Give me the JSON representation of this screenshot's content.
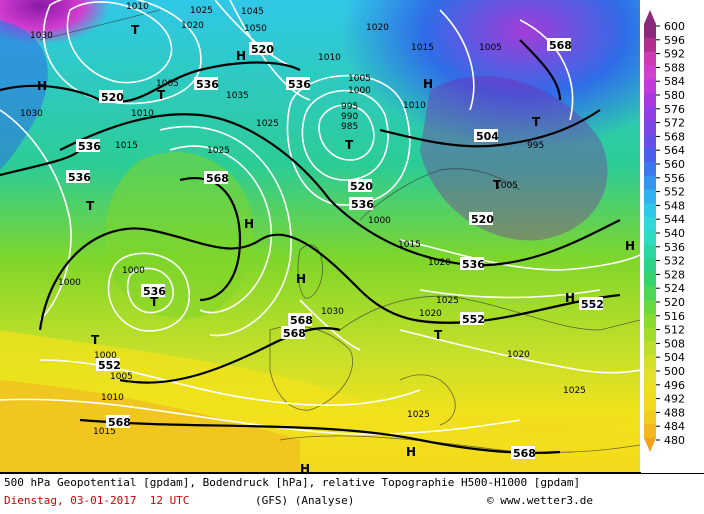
{
  "map": {
    "colors": {
      "low_purple": "#8a1aa8",
      "violet": "#a23cd8",
      "magenta": "#d23ccf",
      "blue": "#2f6de8",
      "cyan": "#30c8e8",
      "teal": "#2ccc96",
      "green": "#7fd62a",
      "yellowgreen": "#c6e02a",
      "yellow": "#f2e21c",
      "orange": "#f0c020"
    },
    "centers": [
      {
        "label": "T",
        "kind": "low"
      },
      {
        "label": "T",
        "kind": "low"
      },
      {
        "label": "T",
        "kind": "low"
      },
      {
        "label": "T",
        "kind": "low"
      },
      {
        "label": "T",
        "kind": "low"
      },
      {
        "label": "T",
        "kind": "low"
      },
      {
        "label": "T",
        "kind": "low"
      },
      {
        "label": "T",
        "kind": "low"
      },
      {
        "label": "T",
        "kind": "low"
      },
      {
        "label": "H",
        "kind": "high"
      },
      {
        "label": "H",
        "kind": "high"
      },
      {
        "label": "H",
        "kind": "high"
      },
      {
        "label": "H",
        "kind": "high"
      },
      {
        "label": "H",
        "kind": "high"
      },
      {
        "label": "H",
        "kind": "high"
      },
      {
        "label": "H",
        "kind": "high"
      },
      {
        "label": "H",
        "kind": "high"
      },
      {
        "label": "H",
        "kind": "high"
      }
    ],
    "geopotential_labels": [
      "520",
      "536",
      "536",
      "520",
      "536",
      "568",
      "536",
      "536",
      "520",
      "536",
      "504",
      "520",
      "536",
      "552",
      "552",
      "568",
      "568",
      "568",
      "552",
      "568",
      "568"
    ],
    "pressure_labels": [
      "1010",
      "1025",
      "1045",
      "1050",
      "1030",
      "1035",
      "1020",
      "1015",
      "1005",
      "1010",
      "995",
      "985",
      "1005",
      "1000",
      "1025",
      "1020",
      "1030",
      "1015",
      "1000",
      "1010",
      "1025",
      "1005",
      "1000",
      "1000",
      "1005",
      "1010",
      "1015",
      "1025",
      "1020",
      "1010",
      "1020",
      "1025",
      "1015",
      "1020",
      "1005",
      "995",
      "1000",
      "990",
      "1025",
      "1030"
    ]
  },
  "legend": {
    "colors": [
      "#8a2a7a",
      "#b03090",
      "#cc3ab4",
      "#d240d0",
      "#c03adc",
      "#a83ae0",
      "#9040e2",
      "#7c48e4",
      "#6450e6",
      "#4a60ea",
      "#3c78ec",
      "#3494ee",
      "#30b2ee",
      "#30c8e8",
      "#30d8d8",
      "#2cdcc0",
      "#2cd6a0",
      "#2cd286",
      "#36d26e",
      "#4ed656",
      "#6ad840",
      "#86da30",
      "#a2dc2a",
      "#bcde2a",
      "#d2e02a",
      "#e2e02a",
      "#eede20",
      "#f2da20",
      "#f2cc20",
      "#f2b820",
      "#f2a020"
    ],
    "ticks": [
      "600",
      "596",
      "592",
      "588",
      "584",
      "580",
      "576",
      "572",
      "568",
      "564",
      "560",
      "556",
      "552",
      "548",
      "544",
      "540",
      "536",
      "532",
      "528",
      "524",
      "520",
      "516",
      "512",
      "508",
      "504",
      "500",
      "496",
      "492",
      "488",
      "484",
      "480"
    ]
  },
  "footer": {
    "line1": "500 hPa Geopotential [gpdam], Bodendruck [hPa], relative Topographie H500-H1000 [gpdam]",
    "date": "Dienstag, 03-01-2017  12 UTC",
    "model": "(GFS)  (Analyse)",
    "copyright": "© www.wetter3.de"
  }
}
